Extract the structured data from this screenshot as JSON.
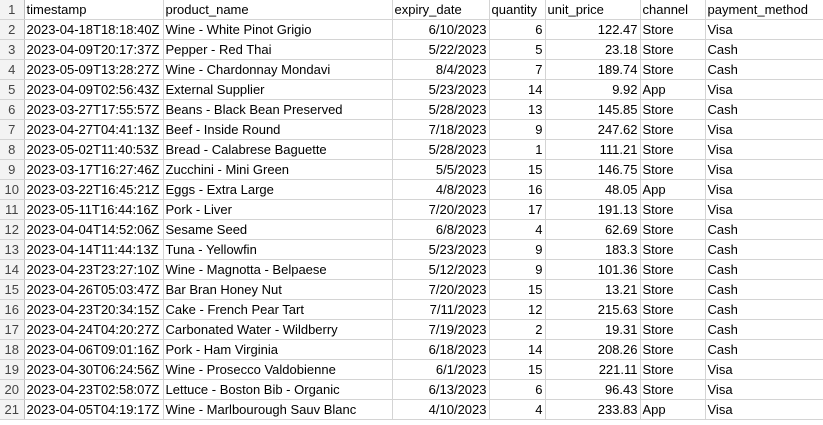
{
  "sheet": {
    "headers": [
      "timestamp",
      "product_name",
      "expiry_date",
      "quantity",
      "unit_price",
      "channel",
      "payment_method"
    ],
    "rows": [
      [
        "2023-04-18T18:18:40Z",
        "Wine - White Pinot Grigio",
        "6/10/2023",
        "6",
        "122.47",
        "Store",
        "Visa"
      ],
      [
        "2023-04-09T20:17:37Z",
        "Pepper - Red Thai",
        "5/22/2023",
        "5",
        "23.18",
        "Store",
        "Cash"
      ],
      [
        "2023-05-09T13:28:27Z",
        "Wine - Chardonnay Mondavi",
        "8/4/2023",
        "7",
        "189.74",
        "Store",
        "Cash"
      ],
      [
        "2023-04-09T02:56:43Z",
        "External Supplier",
        "5/23/2023",
        "14",
        "9.92",
        "App",
        "Visa"
      ],
      [
        "2023-03-27T17:55:57Z",
        "Beans - Black Bean Preserved",
        "5/28/2023",
        "13",
        "145.85",
        "Store",
        "Cash"
      ],
      [
        "2023-04-27T04:41:13Z",
        "Beef - Inside Round",
        "7/18/2023",
        "9",
        "247.62",
        "Store",
        "Visa"
      ],
      [
        "2023-05-02T11:40:53Z",
        "Bread - Calabrese Baguette",
        "5/28/2023",
        "1",
        "111.21",
        "Store",
        "Visa"
      ],
      [
        "2023-03-17T16:27:46Z",
        "Zucchini - Mini Green",
        "5/5/2023",
        "15",
        "146.75",
        "Store",
        "Visa"
      ],
      [
        "2023-03-22T16:45:21Z",
        "Eggs - Extra Large",
        "4/8/2023",
        "16",
        "48.05",
        "App",
        "Visa"
      ],
      [
        "2023-05-11T16:44:16Z",
        "Pork - Liver",
        "7/20/2023",
        "17",
        "191.13",
        "Store",
        "Visa"
      ],
      [
        "2023-04-04T14:52:06Z",
        "Sesame Seed",
        "6/8/2023",
        "4",
        "62.69",
        "Store",
        "Cash"
      ],
      [
        "2023-04-14T11:44:13Z",
        "Tuna - Yellowfin",
        "5/23/2023",
        "9",
        "183.3",
        "Store",
        "Cash"
      ],
      [
        "2023-04-23T23:27:10Z",
        "Wine - Magnotta - Belpaese",
        "5/12/2023",
        "9",
        "101.36",
        "Store",
        "Cash"
      ],
      [
        "2023-04-26T05:03:47Z",
        "Bar Bran Honey Nut",
        "7/20/2023",
        "15",
        "13.21",
        "Store",
        "Cash"
      ],
      [
        "2023-04-23T20:34:15Z",
        "Cake - French Pear Tart",
        "7/11/2023",
        "12",
        "215.63",
        "Store",
        "Cash"
      ],
      [
        "2023-04-24T04:20:27Z",
        "Carbonated Water - Wildberry",
        "7/19/2023",
        "2",
        "19.31",
        "Store",
        "Cash"
      ],
      [
        "2023-04-06T09:01:16Z",
        "Pork - Ham Virginia",
        "6/18/2023",
        "14",
        "208.26",
        "Store",
        "Cash"
      ],
      [
        "2023-04-30T06:24:56Z",
        "Wine - Prosecco Valdobienne",
        "6/1/2023",
        "15",
        "221.11",
        "Store",
        "Visa"
      ],
      [
        "2023-04-23T02:58:07Z",
        "Lettuce - Boston Bib - Organic",
        "6/13/2023",
        "6",
        "96.43",
        "Store",
        "Visa"
      ],
      [
        "2023-04-05T04:19:17Z",
        "Wine - Marlbourough Sauv Blanc",
        "4/10/2023",
        "4",
        "233.83",
        "App",
        "Visa"
      ]
    ],
    "row_numbers": [
      "1",
      "2",
      "3",
      "4",
      "5",
      "6",
      "7",
      "8",
      "9",
      "10",
      "11",
      "12",
      "13",
      "14",
      "15",
      "16",
      "17",
      "18",
      "19",
      "20",
      "21"
    ]
  }
}
